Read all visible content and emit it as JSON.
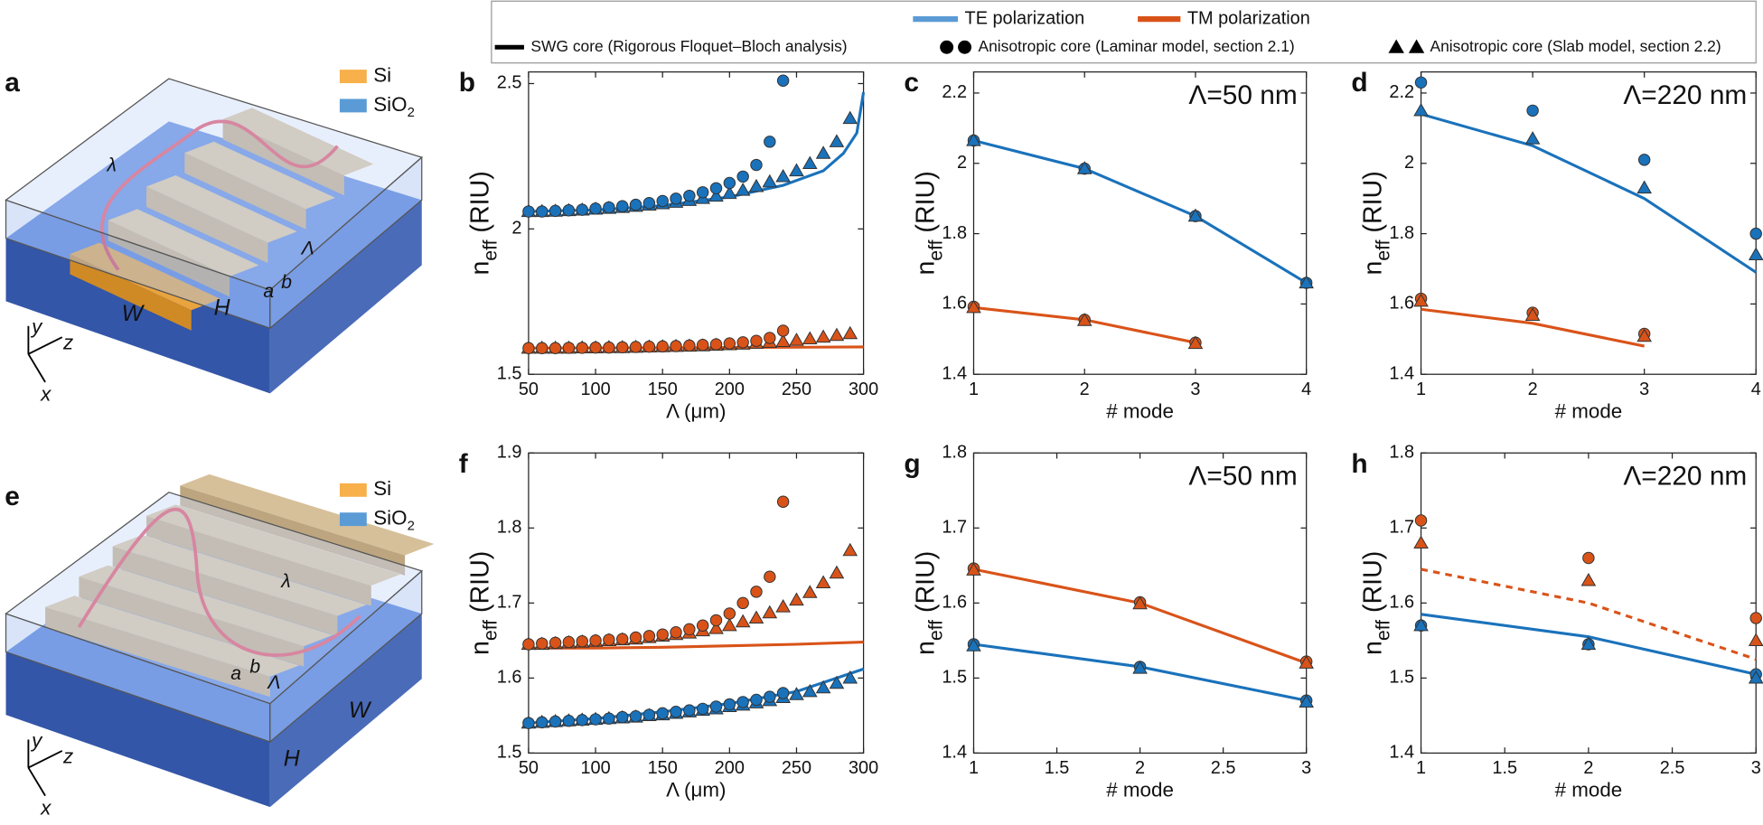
{
  "legend": {
    "polarizations": [
      {
        "label": "TE polarization",
        "color": "#5b9bd5"
      },
      {
        "label": "TM polarization",
        "color": "#d95319"
      }
    ],
    "methods": [
      {
        "label": "SWG core (Rigorous Floquet–Bloch analysis)",
        "marker": "line"
      },
      {
        "label": "Anisotropic core (Laminar model, section 2.1)",
        "marker": "circle"
      },
      {
        "label": "Anisotropic core (Slab model, section 2.2)",
        "marker": "triangle"
      }
    ]
  },
  "schematics": [
    {
      "panel": "a",
      "si": "Si",
      "sio": "SiO",
      "sio_sub": "2",
      "lambda": "λ",
      "period": "Λ",
      "a": "a",
      "b": "b",
      "w": "W",
      "h": "H",
      "x": "x",
      "y": "y",
      "z": "z"
    },
    {
      "panel": "e",
      "si": "Si",
      "sio": "SiO",
      "sio_sub": "2",
      "lambda": "λ",
      "period": "Λ",
      "a": "a",
      "b": "b",
      "w": "W",
      "h": "H",
      "x": "x",
      "y": "y",
      "z": "z"
    }
  ],
  "chart_data": [
    {
      "type": "line",
      "panel": "b",
      "xlabel": "Λ (μm)",
      "ylabel": {
        "main": "n",
        "sub": "eff",
        "unit": " (RIU)"
      },
      "xlim": [
        50,
        300
      ],
      "xticks": [
        50,
        100,
        150,
        200,
        250,
        300
      ],
      "ylim": [
        1.5,
        2.54
      ],
      "yticks": [
        1.5,
        2,
        2.5
      ],
      "series": [
        {
          "style": "line",
          "color": "#1a72bb",
          "x": [
            50,
            100,
            150,
            200,
            240,
            270,
            285,
            295,
            300
          ],
          "values": [
            2.06,
            2.065,
            2.08,
            2.11,
            2.15,
            2.2,
            2.26,
            2.33,
            2.47
          ]
        },
        {
          "style": "line",
          "color": "#d95319",
          "x": [
            50,
            150,
            300
          ],
          "values": [
            1.59,
            1.591,
            1.594
          ]
        },
        {
          "style": "triangle",
          "color": "#1a72bb",
          "x": [
            50,
            60,
            70,
            80,
            90,
            100,
            110,
            120,
            130,
            140,
            150,
            160,
            170,
            180,
            190,
            200,
            210,
            220,
            230,
            240,
            250,
            260,
            270,
            280,
            290
          ],
          "values": [
            2.06,
            2.06,
            2.061,
            2.063,
            2.065,
            2.068,
            2.071,
            2.074,
            2.078,
            2.082,
            2.087,
            2.092,
            2.098,
            2.105,
            2.113,
            2.122,
            2.133,
            2.146,
            2.162,
            2.18,
            2.2,
            2.225,
            2.26,
            2.3,
            2.38
          ]
        },
        {
          "style": "circle",
          "color": "#1a72bb",
          "x": [
            50,
            60,
            70,
            80,
            90,
            100,
            110,
            120,
            130,
            140,
            150,
            160,
            170,
            180,
            190,
            200,
            210,
            220,
            230,
            240
          ],
          "values": [
            2.06,
            2.06,
            2.062,
            2.064,
            2.066,
            2.07,
            2.074,
            2.078,
            2.083,
            2.089,
            2.096,
            2.104,
            2.114,
            2.126,
            2.14,
            2.158,
            2.18,
            2.22,
            2.3,
            2.51
          ]
        },
        {
          "style": "triangle",
          "color": "#d95319",
          "x": [
            50,
            60,
            70,
            80,
            90,
            100,
            110,
            120,
            130,
            140,
            150,
            160,
            170,
            180,
            190,
            200,
            210,
            220,
            230,
            240,
            250,
            260,
            270,
            280,
            290
          ],
          "values": [
            1.59,
            1.59,
            1.59,
            1.59,
            1.591,
            1.591,
            1.592,
            1.592,
            1.593,
            1.594,
            1.595,
            1.596,
            1.597,
            1.598,
            1.6,
            1.602,
            1.604,
            1.607,
            1.61,
            1.613,
            1.617,
            1.622,
            1.628,
            1.634,
            1.64
          ]
        },
        {
          "style": "circle",
          "color": "#d95319",
          "x": [
            50,
            60,
            70,
            80,
            90,
            100,
            110,
            120,
            130,
            140,
            150,
            160,
            170,
            180,
            190,
            200,
            210,
            220,
            230,
            240
          ],
          "values": [
            1.59,
            1.59,
            1.59,
            1.591,
            1.591,
            1.592,
            1.592,
            1.593,
            1.594,
            1.595,
            1.596,
            1.597,
            1.599,
            1.601,
            1.603,
            1.606,
            1.61,
            1.615,
            1.625,
            1.65
          ]
        }
      ]
    },
    {
      "type": "line",
      "panel": "c",
      "annotation": "Λ=50 nm",
      "xlabel": "# mode",
      "ylabel": {
        "main": "n",
        "sub": "eff",
        "unit": " (RIU)"
      },
      "xlim": [
        1,
        4
      ],
      "xticks": [
        1,
        2,
        3,
        4
      ],
      "ylim": [
        1.4,
        2.26
      ],
      "yticks": [
        1.4,
        1.6,
        1.8,
        2,
        2.2
      ],
      "series": [
        {
          "style": "line",
          "color": "#1a72bb",
          "x": [
            1,
            2,
            3,
            4
          ],
          "values": [
            2.065,
            1.985,
            1.85,
            1.66
          ]
        },
        {
          "style": "line",
          "color": "#d95319",
          "x": [
            1,
            2,
            3
          ],
          "values": [
            1.59,
            1.555,
            1.49
          ]
        },
        {
          "style": "circle",
          "color": "#1a72bb",
          "x": [
            1,
            2,
            3,
            4
          ],
          "values": [
            2.065,
            1.985,
            1.85,
            1.66
          ]
        },
        {
          "style": "triangle",
          "color": "#1a72bb",
          "x": [
            1,
            2,
            3,
            4
          ],
          "values": [
            2.065,
            1.985,
            1.85,
            1.66
          ]
        },
        {
          "style": "circle",
          "color": "#d95319",
          "x": [
            1,
            2,
            3
          ],
          "values": [
            1.592,
            1.555,
            1.49
          ]
        },
        {
          "style": "triangle",
          "color": "#d95319",
          "x": [
            1,
            2,
            3
          ],
          "values": [
            1.59,
            1.553,
            1.488
          ]
        }
      ]
    },
    {
      "type": "line",
      "panel": "d",
      "annotation": "Λ=220 nm",
      "xlabel": "# mode",
      "ylabel": {
        "main": "n",
        "sub": "eff",
        "unit": " (RIU)"
      },
      "xlim": [
        1,
        4
      ],
      "xticks": [
        1,
        2,
        3,
        4
      ],
      "ylim": [
        1.4,
        2.26
      ],
      "yticks": [
        1.4,
        1.6,
        1.8,
        2,
        2.2
      ],
      "series": [
        {
          "style": "line",
          "color": "#1a72bb",
          "x": [
            1,
            2,
            3,
            4
          ],
          "values": [
            2.14,
            2.05,
            1.9,
            1.69
          ]
        },
        {
          "style": "line",
          "color": "#d95319",
          "x": [
            1,
            2,
            3
          ],
          "values": [
            1.585,
            1.545,
            1.48
          ]
        },
        {
          "style": "circle",
          "color": "#1a72bb",
          "x": [
            1,
            2,
            3,
            4
          ],
          "values": [
            2.23,
            2.15,
            2.01,
            1.8
          ]
        },
        {
          "style": "triangle",
          "color": "#1a72bb",
          "x": [
            1,
            2,
            3,
            4
          ],
          "values": [
            2.15,
            2.07,
            1.93,
            1.74
          ]
        },
        {
          "style": "circle",
          "color": "#d95319",
          "x": [
            1,
            2,
            3
          ],
          "values": [
            1.615,
            1.575,
            1.515
          ]
        },
        {
          "style": "triangle",
          "color": "#d95319",
          "x": [
            1,
            2,
            3
          ],
          "values": [
            1.608,
            1.568,
            1.508
          ]
        }
      ]
    },
    {
      "type": "line",
      "panel": "f",
      "xlabel": "Λ (μm)",
      "ylabel": {
        "main": "n",
        "sub": "eff",
        "unit": " (RIU)"
      },
      "xlim": [
        50,
        300
      ],
      "xticks": [
        50,
        100,
        150,
        200,
        250,
        300
      ],
      "ylim": [
        1.5,
        1.9
      ],
      "yticks": [
        1.5,
        1.6,
        1.7,
        1.8,
        1.9
      ],
      "series": [
        {
          "style": "line",
          "color": "#1a72bb",
          "x": [
            50,
            100,
            150,
            200,
            250,
            300
          ],
          "values": [
            1.54,
            1.546,
            1.555,
            1.566,
            1.582,
            1.612
          ]
        },
        {
          "style": "line",
          "color": "#d95319",
          "x": [
            50,
            100,
            150,
            200,
            250,
            300
          ],
          "values": [
            1.64,
            1.64,
            1.641,
            1.643,
            1.645,
            1.648
          ]
        },
        {
          "style": "triangle",
          "color": "#d95319",
          "x": [
            50,
            60,
            70,
            80,
            90,
            100,
            110,
            120,
            130,
            140,
            150,
            160,
            170,
            180,
            190,
            200,
            210,
            220,
            230,
            240,
            250,
            260,
            270,
            280,
            290
          ],
          "values": [
            1.645,
            1.645,
            1.646,
            1.647,
            1.648,
            1.649,
            1.65,
            1.651,
            1.652,
            1.654,
            1.656,
            1.658,
            1.66,
            1.663,
            1.666,
            1.67,
            1.675,
            1.68,
            1.687,
            1.695,
            1.704,
            1.714,
            1.727,
            1.74,
            1.77
          ]
        },
        {
          "style": "circle",
          "color": "#d95319",
          "x": [
            50,
            60,
            70,
            80,
            90,
            100,
            110,
            120,
            130,
            140,
            150,
            160,
            170,
            180,
            190,
            200,
            210,
            220,
            230,
            240
          ],
          "values": [
            1.645,
            1.646,
            1.647,
            1.648,
            1.649,
            1.65,
            1.651,
            1.652,
            1.654,
            1.656,
            1.658,
            1.661,
            1.665,
            1.67,
            1.677,
            1.686,
            1.7,
            1.715,
            1.735,
            1.835
          ]
        },
        {
          "style": "triangle",
          "color": "#1a72bb",
          "x": [
            50,
            60,
            70,
            80,
            90,
            100,
            110,
            120,
            130,
            140,
            150,
            160,
            170,
            180,
            190,
            200,
            210,
            220,
            230,
            240,
            250,
            260,
            270,
            280,
            290
          ],
          "values": [
            1.54,
            1.541,
            1.542,
            1.543,
            1.544,
            1.545,
            1.546,
            1.547,
            1.548,
            1.55,
            1.551,
            1.553,
            1.555,
            1.557,
            1.559,
            1.562,
            1.564,
            1.567,
            1.57,
            1.574,
            1.578,
            1.582,
            1.587,
            1.593,
            1.6
          ]
        },
        {
          "style": "circle",
          "color": "#1a72bb",
          "x": [
            50,
            60,
            70,
            80,
            90,
            100,
            110,
            120,
            130,
            140,
            150,
            160,
            170,
            180,
            190,
            200,
            210,
            220,
            230,
            240
          ],
          "values": [
            1.54,
            1.541,
            1.542,
            1.543,
            1.544,
            1.545,
            1.546,
            1.548,
            1.549,
            1.551,
            1.553,
            1.555,
            1.557,
            1.559,
            1.562,
            1.565,
            1.568,
            1.571,
            1.575,
            1.58
          ]
        }
      ]
    },
    {
      "type": "line",
      "panel": "g",
      "annotation": "Λ=50 nm",
      "xlabel": "# mode",
      "ylabel": {
        "main": "n",
        "sub": "eff",
        "unit": " (RIU)"
      },
      "xlim": [
        1,
        3
      ],
      "xticks": [
        1,
        1.5,
        2,
        2.5,
        3
      ],
      "ylim": [
        1.4,
        1.8
      ],
      "yticks": [
        1.4,
        1.5,
        1.6,
        1.7,
        1.8
      ],
      "series": [
        {
          "style": "line",
          "color": "#1a72bb",
          "x": [
            1,
            2,
            3
          ],
          "values": [
            1.545,
            1.515,
            1.47
          ]
        },
        {
          "style": "line",
          "color": "#d95319",
          "x": [
            1,
            2,
            3
          ],
          "values": [
            1.645,
            1.6,
            1.52
          ]
        },
        {
          "style": "circle",
          "color": "#1a72bb",
          "x": [
            1,
            2,
            3
          ],
          "values": [
            1.545,
            1.515,
            1.47
          ]
        },
        {
          "style": "triangle",
          "color": "#1a72bb",
          "x": [
            1,
            2,
            3
          ],
          "values": [
            1.543,
            1.513,
            1.468
          ]
        },
        {
          "style": "circle",
          "color": "#d95319",
          "x": [
            1,
            2,
            3
          ],
          "values": [
            1.646,
            1.601,
            1.522
          ]
        },
        {
          "style": "triangle",
          "color": "#d95319",
          "x": [
            1,
            2,
            3
          ],
          "values": [
            1.644,
            1.599,
            1.52
          ]
        }
      ]
    },
    {
      "type": "line",
      "panel": "h",
      "annotation": "Λ=220 nm",
      "xlabel": "# mode",
      "ylabel": {
        "main": "n",
        "sub": "eff",
        "unit": " (RIU)"
      },
      "xlim": [
        1,
        3
      ],
      "xticks": [
        1,
        1.5,
        2,
        2.5,
        3
      ],
      "ylim": [
        1.4,
        1.8
      ],
      "yticks": [
        1.4,
        1.5,
        1.6,
        1.7,
        1.8
      ],
      "series": [
        {
          "style": "line",
          "color": "#1a72bb",
          "x": [
            1,
            2,
            3
          ],
          "values": [
            1.585,
            1.555,
            1.505
          ]
        },
        {
          "style": "line",
          "color": "#d95319",
          "dash": true,
          "x": [
            1,
            2,
            3
          ],
          "values": [
            1.645,
            1.6,
            1.525
          ]
        },
        {
          "style": "circle",
          "color": "#1a72bb",
          "x": [
            1,
            2,
            3
          ],
          "values": [
            1.57,
            1.545,
            1.505
          ]
        },
        {
          "style": "triangle",
          "color": "#1a72bb",
          "x": [
            1,
            2,
            3
          ],
          "values": [
            1.57,
            1.545,
            1.5
          ]
        },
        {
          "style": "circle",
          "color": "#d95319",
          "x": [
            1,
            2,
            3
          ],
          "values": [
            1.71,
            1.66,
            1.58
          ]
        },
        {
          "style": "triangle",
          "color": "#d95319",
          "x": [
            1,
            2,
            3
          ],
          "values": [
            1.68,
            1.63,
            1.55
          ]
        }
      ]
    }
  ]
}
